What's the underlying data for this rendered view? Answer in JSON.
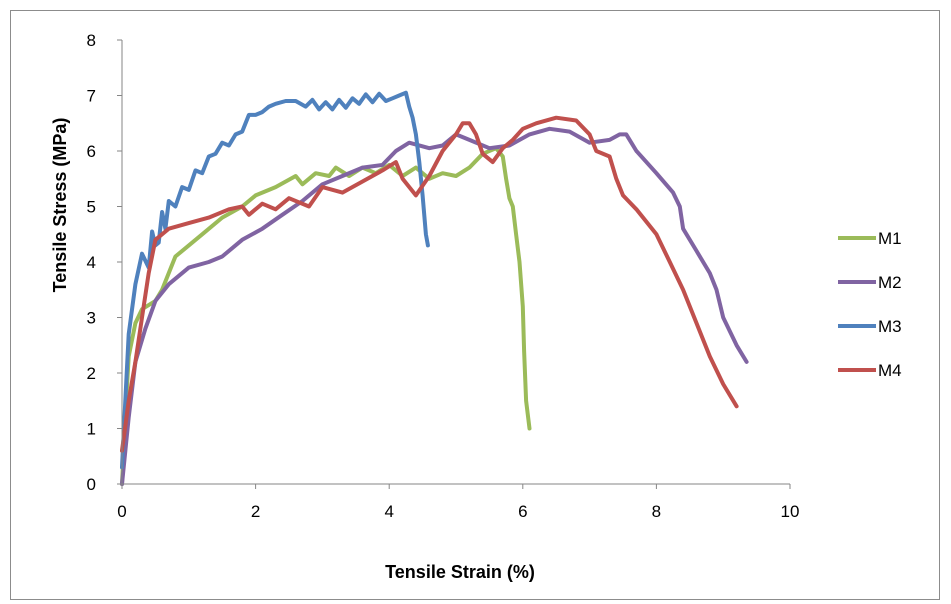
{
  "chart_data": {
    "type": "line",
    "title": "",
    "xlabel": "Tensile Strain (%)",
    "ylabel": "Tensile Stress (MPa)",
    "xlim": [
      0,
      10
    ],
    "ylim": [
      0,
      8
    ],
    "x_ticks": [
      "0",
      "2",
      "4",
      "6",
      "8",
      "10"
    ],
    "y_ticks": [
      "0",
      "1",
      "2",
      "3",
      "4",
      "5",
      "6",
      "7",
      "8"
    ],
    "grid": false,
    "legend_position": "right",
    "series": [
      {
        "name": "M1",
        "color": "#9bbb59",
        "x": [
          0,
          0.05,
          0.1,
          0.2,
          0.3,
          0.5,
          0.6,
          0.8,
          1.0,
          1.2,
          1.5,
          1.8,
          2.0,
          2.3,
          2.6,
          2.7,
          2.9,
          3.1,
          3.2,
          3.4,
          3.6,
          3.8,
          4.0,
          4.2,
          4.4,
          4.6,
          4.8,
          5.0,
          5.2,
          5.4,
          5.6,
          5.7,
          5.75,
          5.8,
          5.85,
          5.9,
          5.95,
          6.0,
          6.02,
          6.05,
          6.1
        ],
        "y": [
          0,
          1.2,
          2.3,
          2.9,
          3.15,
          3.3,
          3.5,
          4.1,
          4.3,
          4.5,
          4.8,
          5.0,
          5.2,
          5.35,
          5.55,
          5.4,
          5.6,
          5.55,
          5.7,
          5.55,
          5.7,
          5.6,
          5.75,
          5.55,
          5.7,
          5.5,
          5.6,
          5.55,
          5.7,
          5.95,
          6.05,
          5.9,
          5.5,
          5.15,
          5.0,
          4.5,
          4.0,
          3.2,
          2.4,
          1.5,
          1.0
        ]
      },
      {
        "name": "M2",
        "color": "#8064a2",
        "x": [
          0,
          0.1,
          0.2,
          0.35,
          0.5,
          0.7,
          1.0,
          1.3,
          1.5,
          1.8,
          2.1,
          2.4,
          2.7,
          3.0,
          3.3,
          3.6,
          3.9,
          4.1,
          4.3,
          4.6,
          4.8,
          5.0,
          5.2,
          5.5,
          5.8,
          6.1,
          6.4,
          6.7,
          7.0,
          7.3,
          7.45,
          7.55,
          7.7,
          8.0,
          8.25,
          8.35,
          8.4,
          8.6,
          8.8,
          8.9,
          9.0,
          9.2,
          9.35
        ],
        "y": [
          0,
          1.2,
          2.2,
          2.8,
          3.3,
          3.6,
          3.9,
          4.0,
          4.1,
          4.4,
          4.6,
          4.85,
          5.1,
          5.4,
          5.55,
          5.7,
          5.75,
          6.0,
          6.15,
          6.05,
          6.1,
          6.3,
          6.2,
          6.05,
          6.1,
          6.3,
          6.4,
          6.35,
          6.15,
          6.2,
          6.3,
          6.3,
          6.0,
          5.6,
          5.25,
          5.0,
          4.6,
          4.2,
          3.8,
          3.5,
          3.0,
          2.5,
          2.2
        ]
      },
      {
        "name": "M3",
        "color": "#4f81bd",
        "x": [
          0,
          0.05,
          0.1,
          0.2,
          0.3,
          0.4,
          0.45,
          0.5,
          0.55,
          0.6,
          0.65,
          0.7,
          0.8,
          0.9,
          1.0,
          1.1,
          1.2,
          1.3,
          1.4,
          1.5,
          1.6,
          1.7,
          1.8,
          1.9,
          2.0,
          2.1,
          2.2,
          2.3,
          2.45,
          2.6,
          2.75,
          2.85,
          2.95,
          3.05,
          3.15,
          3.25,
          3.35,
          3.45,
          3.55,
          3.65,
          3.75,
          3.85,
          3.95,
          4.05,
          4.15,
          4.25,
          4.3,
          4.35,
          4.4,
          4.45,
          4.5,
          4.55,
          4.58
        ],
        "y": [
          0.3,
          1.5,
          2.7,
          3.6,
          4.15,
          3.9,
          4.55,
          4.3,
          4.35,
          4.9,
          4.6,
          5.1,
          5.0,
          5.35,
          5.3,
          5.65,
          5.6,
          5.9,
          5.95,
          6.15,
          6.1,
          6.3,
          6.35,
          6.65,
          6.65,
          6.7,
          6.8,
          6.85,
          6.9,
          6.9,
          6.8,
          6.92,
          6.75,
          6.88,
          6.75,
          6.92,
          6.78,
          6.95,
          6.85,
          7.02,
          6.88,
          7.03,
          6.9,
          6.95,
          7.0,
          7.05,
          6.8,
          6.6,
          6.3,
          5.8,
          5.2,
          4.5,
          4.3
        ]
      },
      {
        "name": "M4",
        "color": "#c0504d",
        "x": [
          0,
          0.1,
          0.2,
          0.3,
          0.4,
          0.5,
          0.7,
          1.0,
          1.3,
          1.6,
          1.8,
          1.9,
          2.1,
          2.3,
          2.5,
          2.8,
          3.0,
          3.3,
          3.6,
          3.9,
          4.1,
          4.2,
          4.4,
          4.6,
          4.8,
          5.0,
          5.1,
          5.2,
          5.3,
          5.4,
          5.55,
          5.7,
          5.85,
          6.0,
          6.2,
          6.5,
          6.8,
          7.0,
          7.1,
          7.3,
          7.4,
          7.5,
          7.7,
          8.0,
          8.2,
          8.4,
          8.6,
          8.8,
          9.0,
          9.2
        ],
        "y": [
          0.6,
          1.5,
          2.2,
          3.0,
          3.8,
          4.4,
          4.6,
          4.7,
          4.8,
          4.95,
          5.0,
          4.85,
          5.05,
          4.95,
          5.15,
          5.0,
          5.35,
          5.25,
          5.45,
          5.65,
          5.8,
          5.5,
          5.2,
          5.55,
          6.0,
          6.3,
          6.5,
          6.5,
          6.3,
          5.95,
          5.8,
          6.05,
          6.2,
          6.4,
          6.5,
          6.6,
          6.55,
          6.3,
          6.0,
          5.9,
          5.5,
          5.2,
          4.95,
          4.5,
          4.0,
          3.5,
          2.9,
          2.3,
          1.8,
          1.4
        ]
      }
    ]
  }
}
